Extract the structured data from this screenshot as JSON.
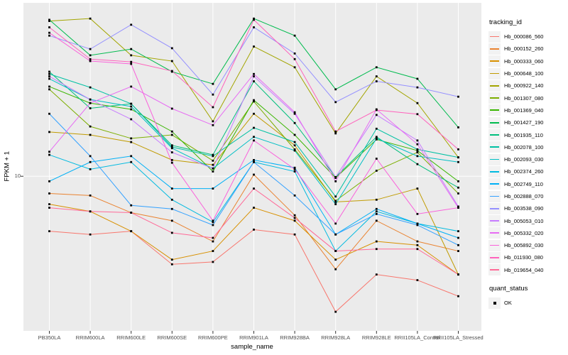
{
  "figure": {
    "y_axis_title": "FPKM + 1",
    "x_axis_title": "sample_name",
    "y_tick_label": "10",
    "panel_bg": "#EBEBEB",
    "gridline_color": "#FFFFFF",
    "axis_text_color": "#4D4D4D",
    "point_color": "#000000"
  },
  "legend": {
    "tracking_title": "tracking_id",
    "quant_title": "quant_status",
    "quant_items": [
      {
        "label": "OK"
      }
    ]
  },
  "chart_data": {
    "type": "line",
    "title": "",
    "xlabel": "sample_name",
    "ylabel": "FPKM + 1",
    "y_scale": "log10",
    "y_ticks": [
      10
    ],
    "ylim": [
      1.6,
      80
    ],
    "grid": "major",
    "legend_position": "right",
    "point_shape": "filled-square",
    "quant_status_all_points": "OK",
    "categories": [
      "PB350LA",
      "RRIM600LA",
      "RRIM600LE",
      "RRIM600SE",
      "RRIM600PE",
      "RRIM901LA",
      "RRIM928BA",
      "RRIM928LA",
      "RRIM928LE",
      "RRII105LA_Control",
      "RRII105LA_Stressed"
    ],
    "series": [
      {
        "name": "Hb_000086_560",
        "color": "#F8766D",
        "values": [
          5.1,
          4.9,
          5.1,
          3.4,
          3.5,
          5.2,
          4.9,
          1.9,
          3.0,
          2.8,
          2.3
        ]
      },
      {
        "name": "Hb_000152_260",
        "color": "#EA8331",
        "values": [
          8.1,
          7.9,
          6.4,
          5.8,
          4.5,
          10.2,
          6.2,
          3.2,
          5.8,
          4.5,
          4.0
        ]
      },
      {
        "name": "Hb_000333_060",
        "color": "#D89000",
        "values": [
          7.1,
          6.5,
          5.1,
          3.6,
          4.0,
          6.8,
          5.8,
          3.6,
          4.5,
          4.3,
          3.0
        ]
      },
      {
        "name": "Hb_000648_100",
        "color": "#C09B00",
        "values": [
          17.2,
          16.6,
          15.2,
          12.2,
          11.5,
          21.5,
          14.6,
          7.3,
          7.5,
          8.6,
          3.0
        ]
      },
      {
        "name": "Hb_000922_140",
        "color": "#A3A500",
        "values": [
          67,
          69,
          44,
          41,
          19.6,
          49,
          38,
          16.9,
          34,
          24.5,
          12.6
        ]
      },
      {
        "name": "Hb_001307_080",
        "color": "#7CAE00",
        "values": [
          29,
          18.4,
          15.9,
          16.6,
          12.1,
          25,
          13.9,
          7.4,
          10.7,
          13.4,
          8.1
        ]
      },
      {
        "name": "Hb_001369_040",
        "color": "#39B600",
        "values": [
          30,
          24.5,
          22.7,
          17.3,
          10.6,
          25.4,
          16.6,
          9.8,
          15.7,
          13.7,
          9.4
        ]
      },
      {
        "name": "Hb_001427_190",
        "color": "#00BB4E",
        "values": [
          68,
          44,
          47.5,
          36,
          31,
          69,
          56,
          29,
          38,
          33,
          18.2
        ]
      },
      {
        "name": "Hb_001935_110",
        "color": "#00BF7D",
        "values": [
          36,
          23,
          24.3,
          14.6,
          13,
          32,
          19.2,
          9.9,
          16.2,
          11.6,
          8.7
        ]
      },
      {
        "name": "Hb_002078_100",
        "color": "#00C1A3",
        "values": [
          35,
          29.7,
          24.3,
          14.3,
          12.8,
          18.1,
          15.2,
          7.8,
          17.9,
          13.9,
          12.6
        ]
      },
      {
        "name": "Hb_002093_030",
        "color": "#00BFC4",
        "values": [
          33,
          25.6,
          23.5,
          14.1,
          11,
          16.2,
          13.7,
          7.1,
          15.9,
          12.8,
          11.9
        ]
      },
      {
        "name": "Hb_002374_260",
        "color": "#00BAE0",
        "values": [
          13,
          10.9,
          11.9,
          7.5,
          5.7,
          11.9,
          10.6,
          4.0,
          6.5,
          5.6,
          5.1
        ]
      },
      {
        "name": "Hb_002749_110",
        "color": "#00B0F6",
        "values": [
          9.4,
          11.9,
          12.8,
          8.6,
          8.6,
          12.2,
          11.1,
          4.9,
          6.7,
          5.6,
          4.7
        ]
      },
      {
        "name": "Hb_002888_070",
        "color": "#35A2FF",
        "values": [
          21.5,
          12.8,
          7.0,
          6.7,
          5.5,
          11.9,
          7.9,
          4.9,
          6.3,
          5.5,
          4.3
        ]
      },
      {
        "name": "Hb_003538_090",
        "color": "#9590FF",
        "values": [
          56,
          47.5,
          64,
          48,
          27.2,
          62,
          45,
          24.8,
          32,
          29.7,
          26.5
        ]
      },
      {
        "name": "Hb_005053_010",
        "color": "#C77CFF",
        "values": [
          34,
          25.6,
          20.1,
          13.4,
          11,
          34,
          21.5,
          9.9,
          21.2,
          15.5,
          6.9
        ]
      },
      {
        "name": "Hb_005332_020",
        "color": "#E76BF3",
        "values": [
          13.5,
          24.5,
          30,
          22.9,
          18.7,
          35,
          21.9,
          9.4,
          22.7,
          14.8,
          6.8
        ]
      },
      {
        "name": "Hb_005892_030",
        "color": "#FA62DB",
        "values": [
          58,
          41,
          39.6,
          11.8,
          5.8,
          15.5,
          10.9,
          5.6,
          12.4,
          6.3,
          6.8
        ]
      },
      {
        "name": "Hb_011930_080",
        "color": "#FF62BC",
        "values": [
          62,
          42,
          40.6,
          36.3,
          23.3,
          68,
          42,
          17.3,
          22.5,
          21.4,
          13.9
        ]
      },
      {
        "name": "Hb_019654_040",
        "color": "#FF6A98",
        "values": [
          6.8,
          6.5,
          6.4,
          5.0,
          4.7,
          8.6,
          6.0,
          4.0,
          4.1,
          4.1,
          3.0
        ]
      }
    ]
  }
}
